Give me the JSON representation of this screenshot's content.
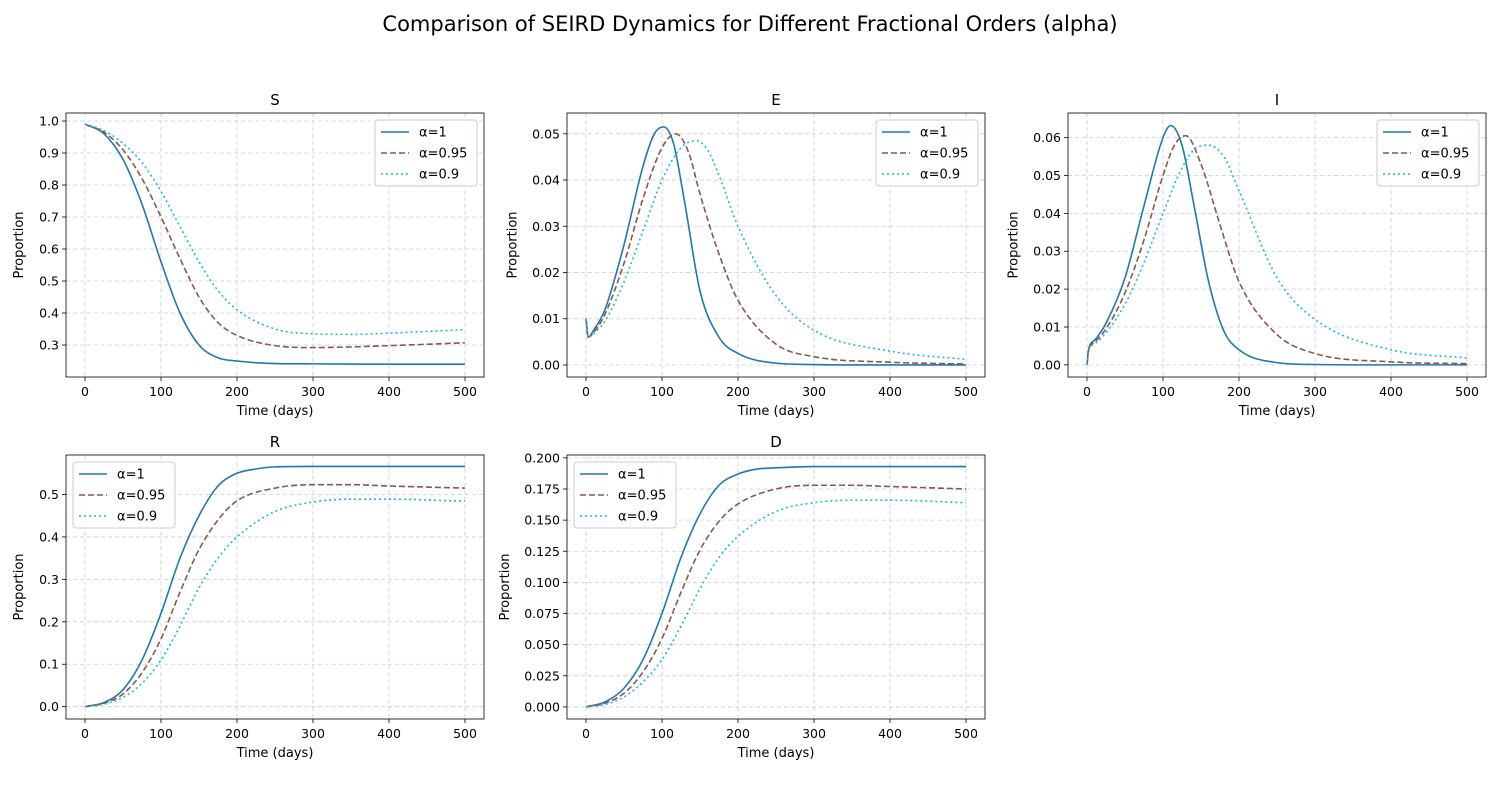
{
  "figure": {
    "title": "Comparison of SEIRD Dynamics for Different Fractional Orders (alpha)"
  },
  "colors": {
    "alpha_1": "#1f77b4",
    "alpha_0_95": "#8c564b",
    "alpha_0_9": "#17becf"
  },
  "chart_data": [
    {
      "type": "line",
      "title": "S",
      "xlabel": "Time (days)",
      "ylabel": "Proportion",
      "xlim": [
        -25,
        525
      ],
      "ylim": [
        0.2,
        1.025
      ],
      "xticks": [
        0,
        100,
        200,
        300,
        400,
        500
      ],
      "yticks": [
        0.3,
        0.4,
        0.5,
        0.6,
        0.7,
        0.8,
        0.9,
        1.0
      ],
      "ytick_labels": [
        "0.3",
        "0.4",
        "0.5",
        "0.6",
        "0.7",
        "0.8",
        "0.9",
        "1.0"
      ],
      "grid": true,
      "legend": "upper-right",
      "series": [
        {
          "name": "α=1",
          "style": "solid",
          "color": "#1f77b4",
          "x": [
            0,
            25,
            50,
            75,
            100,
            125,
            150,
            175,
            200,
            250,
            300,
            400,
            500
          ],
          "y": [
            0.99,
            0.96,
            0.88,
            0.74,
            0.56,
            0.4,
            0.3,
            0.26,
            0.25,
            0.242,
            0.241,
            0.24,
            0.24
          ]
        },
        {
          "name": "α=0.95",
          "style": "dashed",
          "color": "#8c564b",
          "x": [
            0,
            25,
            50,
            75,
            100,
            125,
            150,
            175,
            200,
            250,
            300,
            400,
            500
          ],
          "y": [
            0.99,
            0.965,
            0.91,
            0.82,
            0.7,
            0.57,
            0.45,
            0.37,
            0.33,
            0.298,
            0.292,
            0.298,
            0.307
          ]
        },
        {
          "name": "α=0.9",
          "style": "dotted",
          "color": "#17becf",
          "x": [
            0,
            25,
            50,
            75,
            100,
            125,
            150,
            175,
            200,
            250,
            300,
            350,
            400,
            500
          ],
          "y": [
            0.99,
            0.97,
            0.93,
            0.87,
            0.78,
            0.67,
            0.56,
            0.47,
            0.41,
            0.35,
            0.335,
            0.333,
            0.337,
            0.348
          ]
        }
      ]
    },
    {
      "type": "line",
      "title": "E",
      "xlabel": "Time (days)",
      "ylabel": "Proportion",
      "xlim": [
        -25,
        525
      ],
      "ylim": [
        -0.0026,
        0.0545
      ],
      "xticks": [
        0,
        100,
        200,
        300,
        400,
        500
      ],
      "yticks": [
        0,
        0.01,
        0.02,
        0.03,
        0.04,
        0.05
      ],
      "ytick_labels": [
        "0.00",
        "0.01",
        "0.02",
        "0.03",
        "0.04",
        "0.05"
      ],
      "grid": true,
      "legend": "upper-right",
      "series": [
        {
          "name": "α=1",
          "style": "solid",
          "color": "#1f77b4",
          "x": [
            0,
            3,
            10,
            25,
            50,
            75,
            90,
            102,
            115,
            130,
            150,
            175,
            200,
            250,
            300,
            400,
            500
          ],
          "y": [
            0.01,
            0.006,
            0.0075,
            0.012,
            0.026,
            0.043,
            0.05,
            0.0515,
            0.048,
            0.035,
            0.016,
            0.006,
            0.0025,
            0.0004,
            0.0001,
            0.0,
            0.0
          ]
        },
        {
          "name": "α=0.95",
          "style": "dashed",
          "color": "#8c564b",
          "x": [
            0,
            3,
            10,
            25,
            50,
            75,
            100,
            118,
            135,
            150,
            175,
            200,
            250,
            300,
            400,
            500
          ],
          "y": [
            0.01,
            0.006,
            0.007,
            0.011,
            0.022,
            0.036,
            0.047,
            0.05,
            0.046,
            0.037,
            0.024,
            0.014,
            0.0045,
            0.0018,
            0.0006,
            0.0002
          ]
        },
        {
          "name": "α=0.9",
          "style": "dotted",
          "color": "#17becf",
          "x": [
            0,
            3,
            10,
            25,
            50,
            75,
            100,
            125,
            145,
            160,
            175,
            200,
            250,
            300,
            400,
            500
          ],
          "y": [
            0.01,
            0.006,
            0.0068,
            0.0095,
            0.018,
            0.029,
            0.04,
            0.047,
            0.0485,
            0.0465,
            0.041,
            0.03,
            0.015,
            0.0075,
            0.003,
            0.0012
          ]
        }
      ]
    },
    {
      "type": "line",
      "title": "I",
      "xlabel": "Time (days)",
      "ylabel": "Proportion",
      "xlim": [
        -25,
        525
      ],
      "ylim": [
        -0.0032,
        0.0665
      ],
      "xticks": [
        0,
        100,
        200,
        300,
        400,
        500
      ],
      "yticks": [
        0,
        0.01,
        0.02,
        0.03,
        0.04,
        0.05,
        0.06
      ],
      "ytick_labels": [
        "0.00",
        "0.01",
        "0.02",
        "0.03",
        "0.04",
        "0.05",
        "0.06"
      ],
      "grid": true,
      "legend": "upper-right",
      "series": [
        {
          "name": "α=1",
          "style": "solid",
          "color": "#1f77b4",
          "x": [
            0,
            2,
            10,
            25,
            50,
            75,
            100,
            110,
            125,
            140,
            160,
            180,
            200,
            250,
            300,
            400,
            500
          ],
          "y": [
            0.0,
            0.004,
            0.0065,
            0.011,
            0.023,
            0.042,
            0.06,
            0.0632,
            0.058,
            0.043,
            0.022,
            0.009,
            0.004,
            0.0006,
            0.0001,
            0.0,
            0.0
          ]
        },
        {
          "name": "α=0.95",
          "style": "dashed",
          "color": "#8c564b",
          "x": [
            0,
            2,
            10,
            25,
            50,
            75,
            100,
            115,
            130,
            150,
            175,
            200,
            250,
            300,
            400,
            500
          ],
          "y": [
            0.0,
            0.0038,
            0.006,
            0.0095,
            0.019,
            0.033,
            0.05,
            0.058,
            0.0605,
            0.053,
            0.037,
            0.022,
            0.008,
            0.003,
            0.0008,
            0.0003
          ]
        },
        {
          "name": "α=0.9",
          "style": "dotted",
          "color": "#17becf",
          "x": [
            0,
            2,
            10,
            25,
            50,
            75,
            100,
            125,
            145,
            160,
            180,
            200,
            250,
            300,
            400,
            500
          ],
          "y": [
            0.0,
            0.0035,
            0.0055,
            0.0085,
            0.016,
            0.027,
            0.04,
            0.052,
            0.0575,
            0.058,
            0.055,
            0.046,
            0.023,
            0.012,
            0.004,
            0.0018
          ]
        }
      ]
    },
    {
      "type": "line",
      "title": "R",
      "xlabel": "Time (days)",
      "ylabel": "Proportion",
      "xlim": [
        -25,
        525
      ],
      "ylim": [
        -0.029,
        0.593
      ],
      "xticks": [
        0,
        100,
        200,
        300,
        400,
        500
      ],
      "yticks": [
        0,
        0.1,
        0.2,
        0.3,
        0.4,
        0.5
      ],
      "ytick_labels": [
        "0.0",
        "0.1",
        "0.2",
        "0.3",
        "0.4",
        "0.5"
      ],
      "grid": true,
      "legend": "upper-left",
      "series": [
        {
          "name": "α=1",
          "style": "solid",
          "color": "#1f77b4",
          "x": [
            0,
            25,
            50,
            75,
            100,
            125,
            150,
            175,
            200,
            225,
            250,
            300,
            400,
            500
          ],
          "y": [
            0.0,
            0.01,
            0.04,
            0.11,
            0.22,
            0.35,
            0.45,
            0.52,
            0.55,
            0.56,
            0.565,
            0.566,
            0.566,
            0.566
          ]
        },
        {
          "name": "α=0.95",
          "style": "dashed",
          "color": "#8c564b",
          "x": [
            0,
            25,
            50,
            75,
            100,
            125,
            150,
            175,
            200,
            250,
            300,
            350,
            400,
            500
          ],
          "y": [
            0.0,
            0.008,
            0.03,
            0.08,
            0.16,
            0.27,
            0.37,
            0.44,
            0.485,
            0.515,
            0.523,
            0.523,
            0.52,
            0.515
          ]
        },
        {
          "name": "α=0.9",
          "style": "dotted",
          "color": "#17becf",
          "x": [
            0,
            25,
            50,
            75,
            100,
            125,
            150,
            175,
            200,
            250,
            300,
            350,
            400,
            500
          ],
          "y": [
            0.0,
            0.006,
            0.022,
            0.055,
            0.11,
            0.19,
            0.28,
            0.35,
            0.4,
            0.46,
            0.482,
            0.489,
            0.489,
            0.484
          ]
        }
      ]
    },
    {
      "type": "line",
      "title": "D",
      "xlabel": "Time (days)",
      "ylabel": "Proportion",
      "xlim": [
        -25,
        525
      ],
      "ylim": [
        -0.0097,
        0.2023
      ],
      "xticks": [
        0,
        100,
        200,
        300,
        400,
        500
      ],
      "yticks": [
        0,
        0.025,
        0.05,
        0.075,
        0.1,
        0.125,
        0.15,
        0.175,
        0.2
      ],
      "ytick_labels": [
        "0.000",
        "0.025",
        "0.050",
        "0.075",
        "0.100",
        "0.125",
        "0.150",
        "0.175",
        "0.200"
      ],
      "grid": true,
      "legend": "upper-left",
      "series": [
        {
          "name": "α=1",
          "style": "solid",
          "color": "#1f77b4",
          "x": [
            0,
            25,
            50,
            75,
            100,
            125,
            150,
            175,
            200,
            225,
            250,
            300,
            400,
            500
          ],
          "y": [
            0.0,
            0.004,
            0.015,
            0.038,
            0.075,
            0.12,
            0.155,
            0.178,
            0.187,
            0.191,
            0.192,
            0.193,
            0.193,
            0.193
          ]
        },
        {
          "name": "α=0.95",
          "style": "dashed",
          "color": "#8c564b",
          "x": [
            0,
            25,
            50,
            75,
            100,
            125,
            150,
            175,
            200,
            250,
            300,
            350,
            400,
            500
          ],
          "y": [
            0.0,
            0.003,
            0.011,
            0.028,
            0.055,
            0.092,
            0.126,
            0.149,
            0.163,
            0.175,
            0.178,
            0.178,
            0.177,
            0.175
          ]
        },
        {
          "name": "α=0.9",
          "style": "dotted",
          "color": "#17becf",
          "x": [
            0,
            25,
            50,
            75,
            100,
            125,
            150,
            175,
            200,
            250,
            300,
            350,
            400,
            500
          ],
          "y": [
            0.0,
            0.002,
            0.008,
            0.02,
            0.038,
            0.065,
            0.095,
            0.12,
            0.137,
            0.157,
            0.164,
            0.166,
            0.166,
            0.164
          ]
        }
      ]
    }
  ]
}
